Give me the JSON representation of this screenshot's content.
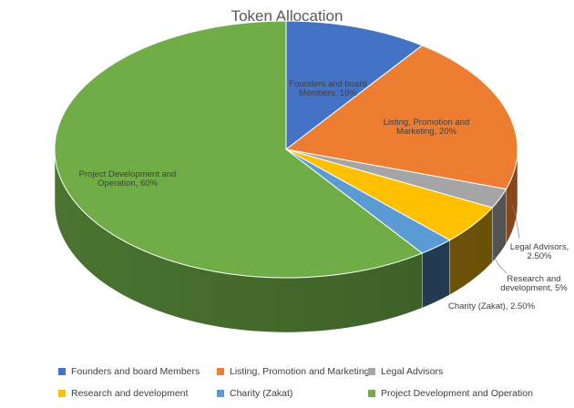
{
  "chart_data": {
    "type": "pie",
    "title": "Token Allocation",
    "slices": [
      {
        "name": "Founders and board Members",
        "value": 10,
        "label": "Founders and board Members, 10%",
        "color": "#4472C4",
        "side": "#2F5597"
      },
      {
        "name": "Listing, Promotion and Marketing",
        "value": 20,
        "label": "Listing, Promotion and Marketing, 20%",
        "color": "#ED7D31",
        "side": "#B25E22"
      },
      {
        "name": "Legal Advisors",
        "value": 2.5,
        "label": "Legal Advisors, 2.50%",
        "color": "#A5A5A5",
        "side": "#6E6E6E"
      },
      {
        "name": "Research and development",
        "value": 5,
        "label": "Research and development, 5%",
        "color": "#FFC000",
        "side": "#8A6A0A"
      },
      {
        "name": "Charity (Zakat)",
        "value": 2.5,
        "label": "Charity (Zakat), 2.50%",
        "color": "#5B9BD5",
        "side": "#2D4A66"
      },
      {
        "name": "Project Development and Operation",
        "value": 60,
        "label": "Project Development and Operation, 60%",
        "color": "#70AD47",
        "side": "#4E7A32"
      }
    ],
    "legend_position": "bottom"
  }
}
